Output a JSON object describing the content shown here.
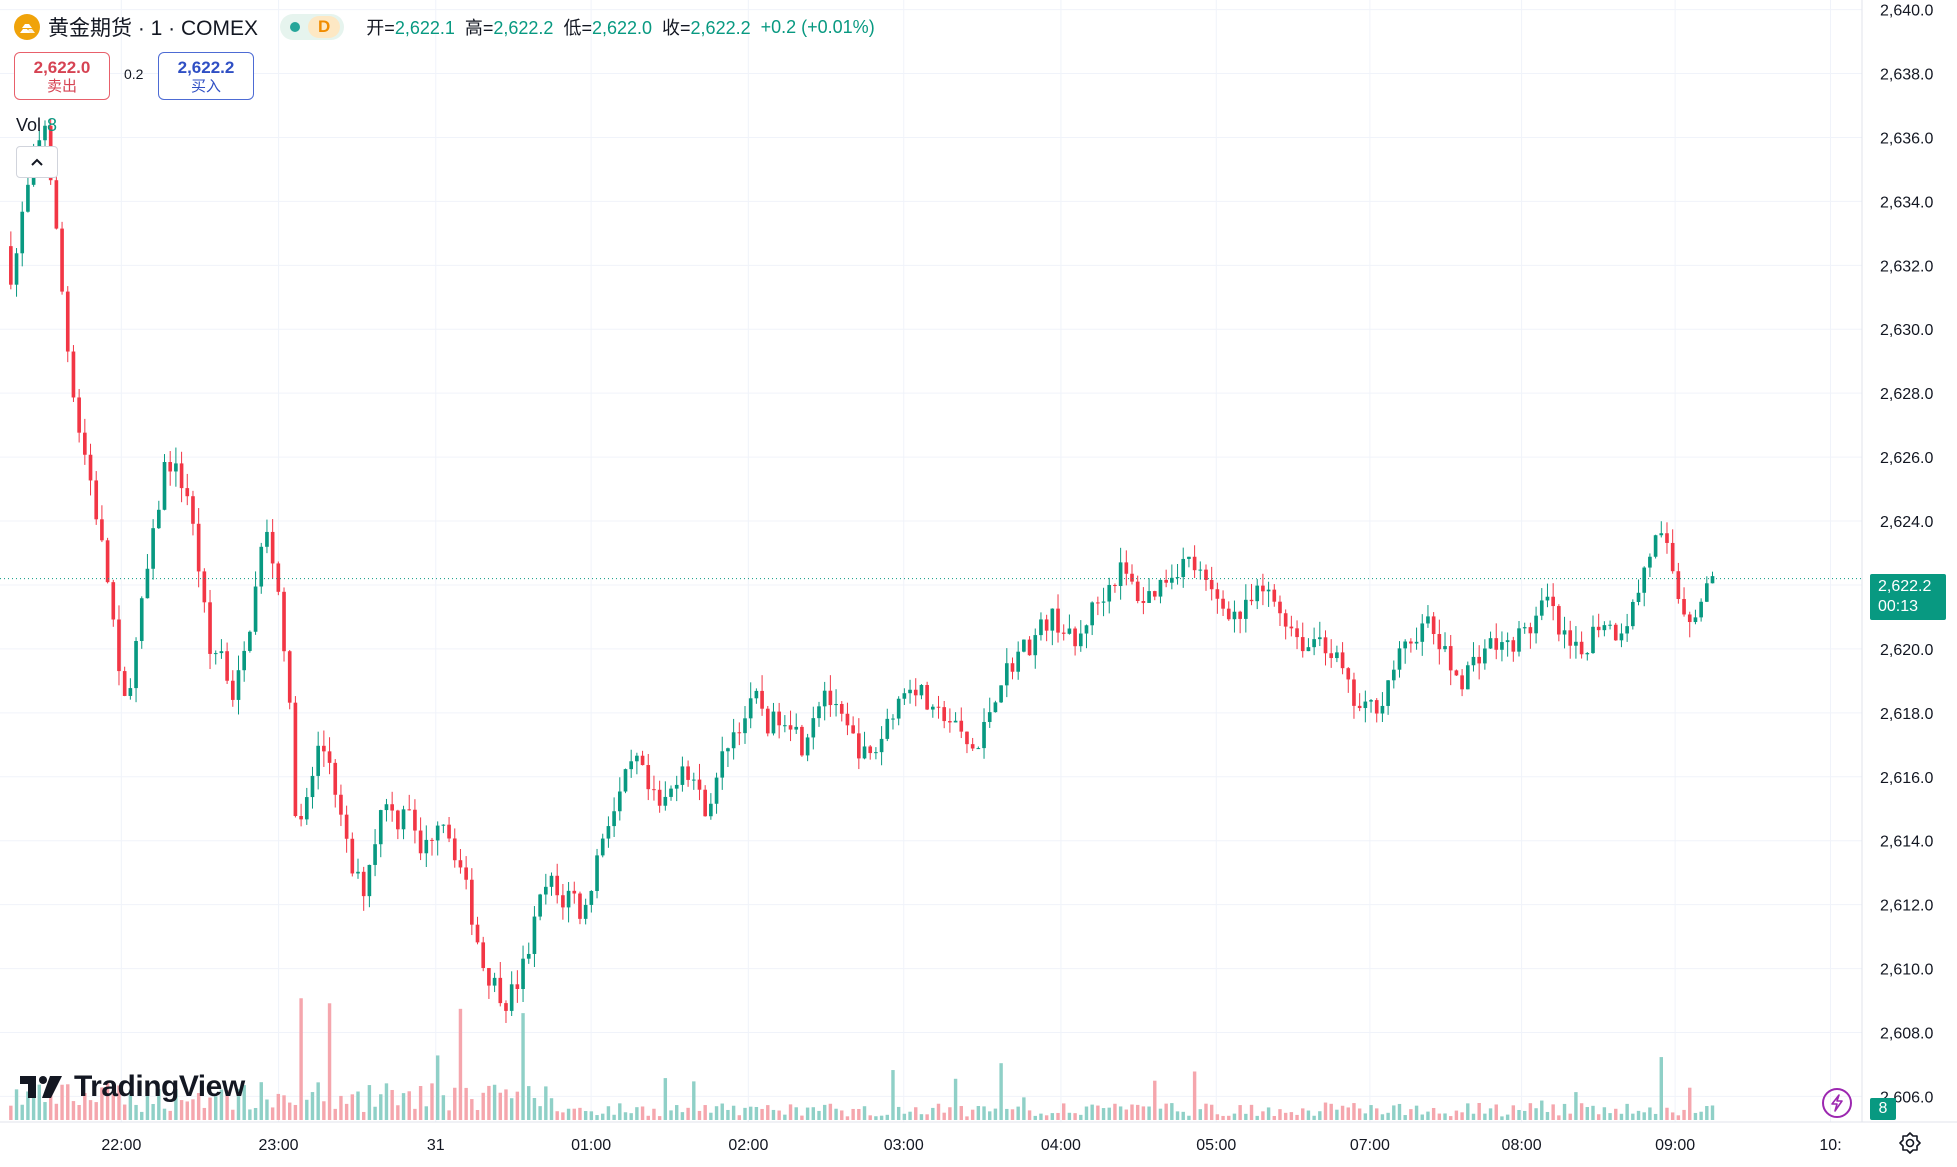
{
  "header": {
    "symbol_title": "黄金期货 · 1 · COMEX",
    "status_letter": "D",
    "ohlc": [
      {
        "label": "开=",
        "value": "2,622.1"
      },
      {
        "label": "高=",
        "value": "2,622.2"
      },
      {
        "label": "低=",
        "value": "2,622.0"
      },
      {
        "label": "收=",
        "value": "2,622.2"
      }
    ],
    "change": "+0.2 (+0.01%)"
  },
  "trade": {
    "sell_price": "2,622.0",
    "sell_label": "卖出",
    "buy_price": "2,622.2",
    "buy_label": "买入",
    "spread": "0.2"
  },
  "volume_legend": {
    "label": "Vol",
    "value": "8"
  },
  "brand": {
    "name": "TradingView"
  },
  "last_price": {
    "price": "2,622.2",
    "countdown": "00:13",
    "volume_tag": "8"
  },
  "icons": {
    "lightning": "lightning-icon",
    "settings": "gear-icon",
    "collapse": "chevron-up-icon"
  },
  "colors": {
    "up": "#089981",
    "down": "#f23645",
    "up_vol": "#8fd0c7",
    "down_vol": "#f5a6ad"
  },
  "chart_data": {
    "type": "candlestick",
    "ylim": [
      2605.2,
      2640.3
    ],
    "y_ticks": [
      2640,
      2638,
      2636,
      2634,
      2632,
      2630,
      2628,
      2626,
      2624,
      2622,
      2620,
      2618,
      2616,
      2614,
      2612,
      2610,
      2608,
      2606
    ],
    "y_tick_labels": [
      "2,640.0",
      "2,638.0",
      "2,636.0",
      "2,634.0",
      "2,632.0",
      "2,630.0",
      "2,628.0",
      "2,626.0",
      "2,624.0",
      "",
      "2,620.0",
      "2,618.0",
      "2,616.0",
      "2,614.0",
      "2,612.0",
      "2,610.0",
      "2,608.0",
      "2,606.0"
    ],
    "x_ticks": [
      {
        "label": "22:00",
        "t": 0.062
      },
      {
        "label": "23:00",
        "t": 0.148
      },
      {
        "label": "31",
        "t": 0.234
      },
      {
        "label": "01:00",
        "t": 0.319
      },
      {
        "label": "02:00",
        "t": 0.405
      },
      {
        "label": "03:00",
        "t": 0.49
      },
      {
        "label": "04:00",
        "t": 0.576
      },
      {
        "label": "05:00",
        "t": 0.661
      },
      {
        "label": "07:00",
        "t": 0.745
      },
      {
        "label": "08:00",
        "t": 0.828
      },
      {
        "label": "09:00",
        "t": 0.912
      },
      {
        "label": "10:",
        "t": 0.997
      }
    ],
    "last_price": 2622.2,
    "price_path": [
      [
        0.0,
        2632.6
      ],
      [
        0.004,
        2631.5
      ],
      [
        0.01,
        2633.8
      ],
      [
        0.016,
        2635.2
      ],
      [
        0.022,
        2636.5
      ],
      [
        0.028,
        2633.0
      ],
      [
        0.034,
        2629.5
      ],
      [
        0.04,
        2627.0
      ],
      [
        0.046,
        2625.5
      ],
      [
        0.052,
        2623.5
      ],
      [
        0.058,
        2621.5
      ],
      [
        0.064,
        2618.0
      ],
      [
        0.07,
        2619.5
      ],
      [
        0.076,
        2621.8
      ],
      [
        0.082,
        2623.8
      ],
      [
        0.088,
        2626.0
      ],
      [
        0.094,
        2625.5
      ],
      [
        0.1,
        2624.8
      ],
      [
        0.106,
        2622.5
      ],
      [
        0.112,
        2619.8
      ],
      [
        0.118,
        2620.0
      ],
      [
        0.124,
        2618.5
      ],
      [
        0.13,
        2619.5
      ],
      [
        0.136,
        2621.5
      ],
      [
        0.142,
        2623.8
      ],
      [
        0.148,
        2622.5
      ],
      [
        0.154,
        2619.5
      ],
      [
        0.16,
        2614.0
      ],
      [
        0.166,
        2615.5
      ],
      [
        0.172,
        2617.0
      ],
      [
        0.178,
        2616.5
      ],
      [
        0.184,
        2614.5
      ],
      [
        0.19,
        2613.0
      ],
      [
        0.196,
        2612.5
      ],
      [
        0.202,
        2614.0
      ],
      [
        0.208,
        2615.5
      ],
      [
        0.214,
        2614.5
      ],
      [
        0.22,
        2615.5
      ],
      [
        0.226,
        2613.5
      ],
      [
        0.232,
        2614.0
      ],
      [
        0.238,
        2615.0
      ],
      [
        0.244,
        2614.0
      ],
      [
        0.25,
        2613.0
      ],
      [
        0.256,
        2611.5
      ],
      [
        0.262,
        2610.0
      ],
      [
        0.268,
        2609.5
      ],
      [
        0.274,
        2609.0
      ],
      [
        0.28,
        2609.5
      ],
      [
        0.286,
        2610.5
      ],
      [
        0.292,
        2612.0
      ],
      [
        0.298,
        2612.8
      ],
      [
        0.304,
        2612.0
      ],
      [
        0.31,
        2612.5
      ],
      [
        0.316,
        2611.5
      ],
      [
        0.322,
        2613.0
      ],
      [
        0.328,
        2614.5
      ],
      [
        0.334,
        2615.0
      ],
      [
        0.34,
        2616.0
      ],
      [
        0.346,
        2616.5
      ],
      [
        0.352,
        2615.5
      ],
      [
        0.358,
        2615.0
      ],
      [
        0.364,
        2615.5
      ],
      [
        0.37,
        2616.5
      ],
      [
        0.376,
        2616.0
      ],
      [
        0.382,
        2615.0
      ],
      [
        0.388,
        2615.5
      ],
      [
        0.394,
        2617.0
      ],
      [
        0.4,
        2617.5
      ],
      [
        0.406,
        2618.0
      ],
      [
        0.412,
        2618.5
      ],
      [
        0.418,
        2617.5
      ],
      [
        0.424,
        2618.0
      ],
      [
        0.43,
        2617.8
      ],
      [
        0.436,
        2617.0
      ],
      [
        0.442,
        2618.0
      ],
      [
        0.448,
        2618.8
      ],
      [
        0.454,
        2618.0
      ],
      [
        0.46,
        2617.5
      ],
      [
        0.466,
        2617.0
      ],
      [
        0.472,
        2616.5
      ],
      [
        0.478,
        2617.0
      ],
      [
        0.484,
        2618.0
      ],
      [
        0.49,
        2618.5
      ],
      [
        0.496,
        2619.0
      ],
      [
        0.502,
        2618.5
      ],
      [
        0.508,
        2617.8
      ],
      [
        0.514,
        2618.0
      ],
      [
        0.52,
        2617.5
      ],
      [
        0.526,
        2617.0
      ],
      [
        0.532,
        2616.8
      ],
      [
        0.538,
        2618.0
      ],
      [
        0.544,
        2619.0
      ],
      [
        0.55,
        2619.5
      ],
      [
        0.556,
        2620.0
      ],
      [
        0.562,
        2620.2
      ],
      [
        0.568,
        2620.8
      ],
      [
        0.574,
        2621.0
      ],
      [
        0.58,
        2620.5
      ],
      [
        0.586,
        2620.0
      ],
      [
        0.592,
        2621.0
      ],
      [
        0.598,
        2621.5
      ],
      [
        0.604,
        2622.0
      ],
      [
        0.61,
        2622.5
      ],
      [
        0.616,
        2622.0
      ],
      [
        0.622,
        2621.5
      ],
      [
        0.628,
        2621.8
      ],
      [
        0.634,
        2622.2
      ],
      [
        0.64,
        2622.5
      ],
      [
        0.646,
        2622.8
      ],
      [
        0.652,
        2622.5
      ],
      [
        0.658,
        2621.8
      ],
      [
        0.664,
        2621.5
      ],
      [
        0.67,
        2621.2
      ],
      [
        0.676,
        2621.0
      ],
      [
        0.682,
        2621.5
      ],
      [
        0.688,
        2621.8
      ],
      [
        0.694,
        2621.5
      ],
      [
        0.7,
        2621.0
      ],
      [
        0.706,
        2620.5
      ],
      [
        0.712,
        2620.0
      ],
      [
        0.718,
        2620.5
      ],
      [
        0.724,
        2620.0
      ],
      [
        0.73,
        2619.5
      ],
      [
        0.736,
        2618.5
      ],
      [
        0.742,
        2618.0
      ],
      [
        0.748,
        2618.2
      ],
      [
        0.754,
        2618.5
      ],
      [
        0.76,
        2619.5
      ],
      [
        0.766,
        2620.0
      ],
      [
        0.772,
        2620.5
      ],
      [
        0.778,
        2620.8
      ],
      [
        0.784,
        2620.2
      ],
      [
        0.79,
        2619.5
      ],
      [
        0.796,
        2619.0
      ],
      [
        0.802,
        2619.5
      ],
      [
        0.808,
        2620.0
      ],
      [
        0.814,
        2620.2
      ],
      [
        0.82,
        2620.0
      ],
      [
        0.826,
        2620.3
      ],
      [
        0.832,
        2620.5
      ],
      [
        0.838,
        2621.0
      ],
      [
        0.844,
        2621.5
      ],
      [
        0.85,
        2620.5
      ],
      [
        0.856,
        2620.0
      ],
      [
        0.862,
        2619.8
      ],
      [
        0.868,
        2620.5
      ],
      [
        0.874,
        2621.0
      ],
      [
        0.88,
        2620.5
      ],
      [
        0.886,
        2620.8
      ],
      [
        0.892,
        2621.5
      ],
      [
        0.898,
        2622.8
      ],
      [
        0.904,
        2623.5
      ],
      [
        0.91,
        2623.0
      ],
      [
        0.916,
        2621.5
      ],
      [
        0.922,
        2621.0
      ],
      [
        0.928,
        2621.5
      ],
      [
        0.934,
        2622.2
      ]
    ]
  }
}
